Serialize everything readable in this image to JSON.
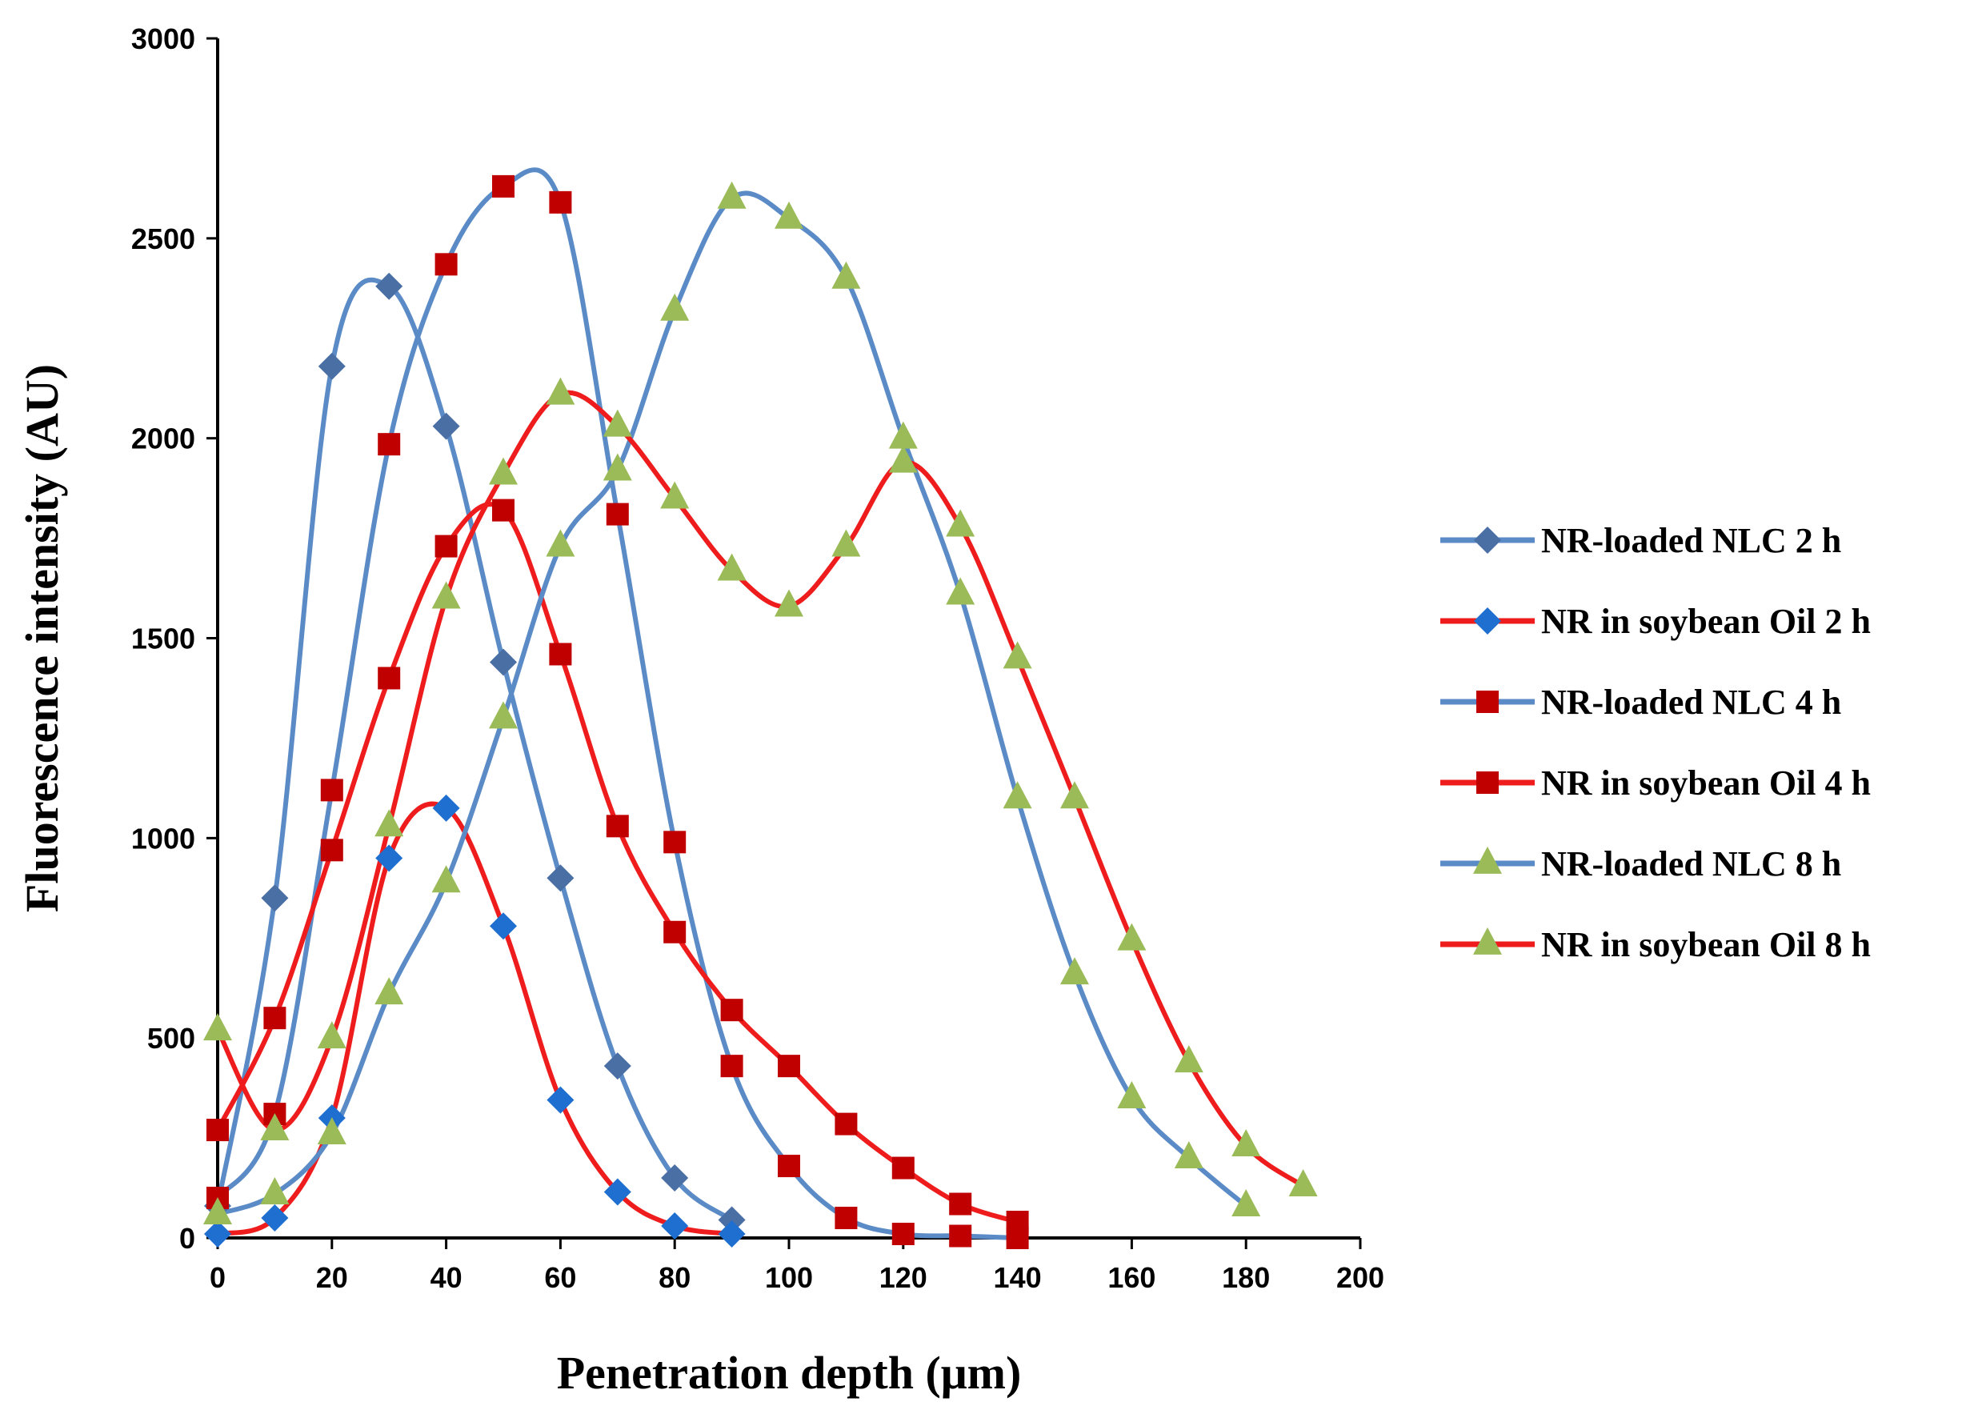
{
  "chart_data": {
    "type": "line",
    "title": "",
    "xlabel": "Penetration depth (μm)",
    "ylabel": "Fluorescence intensity (AU)",
    "xlim": [
      0,
      200
    ],
    "ylim": [
      0,
      3000
    ],
    "xticks": [
      0,
      20,
      40,
      60,
      80,
      100,
      120,
      140,
      160,
      180,
      200
    ],
    "yticks": [
      0,
      500,
      1000,
      1500,
      2000,
      2500,
      3000
    ],
    "grid": false,
    "legend_position": "right",
    "series": [
      {
        "name": "NR-loaded NLC 2 h",
        "line_color": "#5B8BC6",
        "marker": "diamond",
        "marker_color": "#4A6FA5",
        "x": [
          0,
          10,
          20,
          30,
          40,
          50,
          60,
          70,
          80,
          90
        ],
        "y": [
          80,
          850,
          2180,
          2380,
          2030,
          1440,
          900,
          430,
          150,
          45
        ]
      },
      {
        "name": "NR in soybean Oil 2 h",
        "line_color": "#EE1C1C",
        "marker": "diamond",
        "marker_color": "#1F6FD0",
        "x": [
          0,
          10,
          20,
          30,
          40,
          50,
          60,
          70,
          80,
          90
        ],
        "y": [
          10,
          50,
          300,
          950,
          1075,
          780,
          345,
          115,
          30,
          10
        ]
      },
      {
        "name": "NR-loaded NLC 4 h",
        "line_color": "#5B8BC6",
        "marker": "square",
        "marker_color": "#C00000",
        "x": [
          0,
          10,
          20,
          30,
          40,
          50,
          60,
          70,
          80,
          90,
          100,
          110,
          120,
          130,
          140
        ],
        "y": [
          100,
          310,
          1120,
          1985,
          2435,
          2630,
          2590,
          1810,
          990,
          430,
          180,
          50,
          10,
          5,
          0
        ]
      },
      {
        "name": "NR in soybean Oil 4 h",
        "line_color": "#EE1C1C",
        "marker": "square",
        "marker_color": "#C00000",
        "x": [
          0,
          10,
          20,
          30,
          40,
          50,
          60,
          70,
          80,
          90,
          100,
          110,
          120,
          130,
          140
        ],
        "y": [
          270,
          550,
          970,
          1400,
          1730,
          1820,
          1460,
          1030,
          765,
          570,
          430,
          285,
          175,
          85,
          40
        ]
      },
      {
        "name": "NR-loaded NLC 8 h",
        "line_color": "#5B8BC6",
        "marker": "triangle",
        "marker_color": "#9BBB59",
        "x": [
          0,
          10,
          20,
          30,
          40,
          50,
          60,
          70,
          80,
          90,
          100,
          110,
          120,
          130,
          140,
          150,
          160,
          170,
          180
        ],
        "y": [
          60,
          110,
          260,
          610,
          890,
          1300,
          1730,
          1920,
          2320,
          2600,
          2550,
          2400,
          2000,
          1610,
          1100,
          660,
          350,
          200,
          80
        ]
      },
      {
        "name": "NR in soybean Oil 8 h",
        "line_color": "#EE1C1C",
        "marker": "triangle",
        "marker_color": "#9BBB59",
        "x": [
          0,
          10,
          20,
          30,
          40,
          50,
          60,
          70,
          80,
          90,
          100,
          110,
          120,
          130,
          140,
          150,
          160,
          170,
          180,
          190
        ],
        "y": [
          520,
          270,
          500,
          1030,
          1600,
          1910,
          2110,
          2030,
          1850,
          1670,
          1580,
          1730,
          1940,
          1780,
          1450,
          1100,
          745,
          440,
          230,
          130
        ]
      }
    ]
  }
}
